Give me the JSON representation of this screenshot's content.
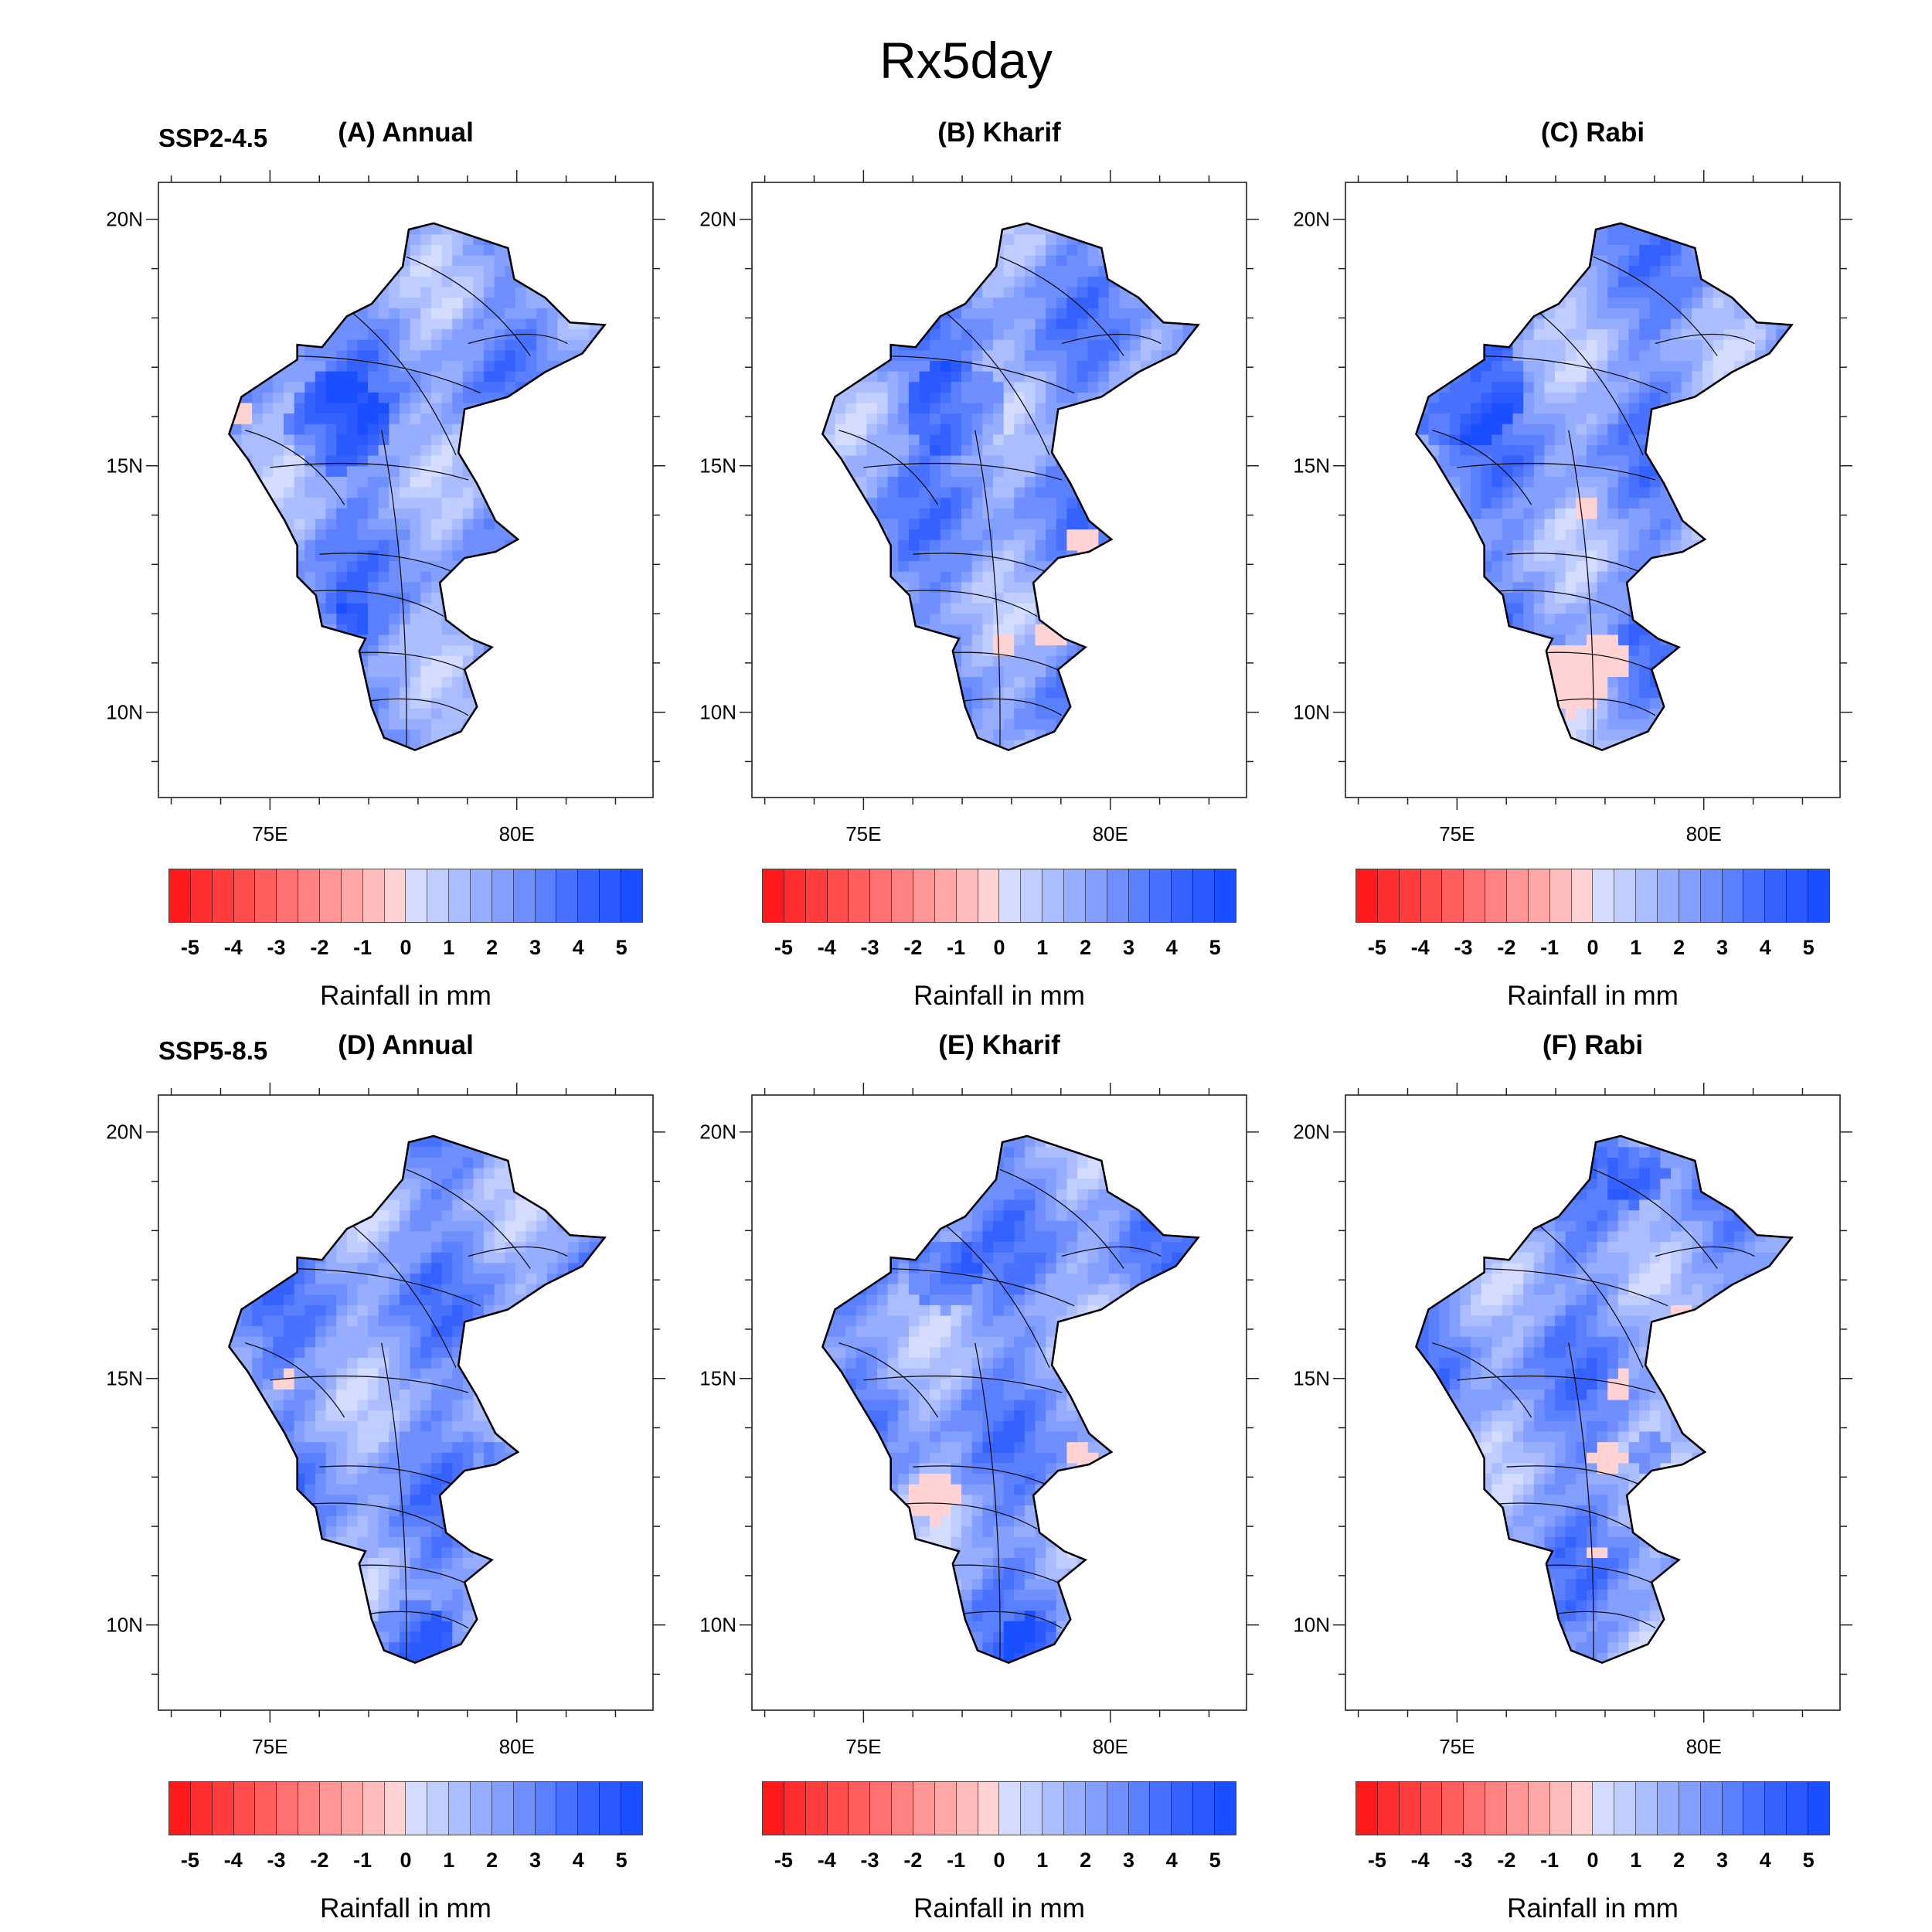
{
  "title": "Rx5day",
  "unit_label": "Rainfall in mm",
  "colorbar": {
    "ticks": [
      "-5",
      "-4",
      "-3",
      "-2",
      "-1",
      "0",
      "1",
      "2",
      "3",
      "4",
      "5"
    ],
    "range": [
      -5.5,
      5.5
    ],
    "step": 0.5,
    "colors": [
      "#ff1a1a",
      "#ff2f2f",
      "#ff3d3d",
      "#ff4c4c",
      "#ff5e5e",
      "#ff7070",
      "#ff8282",
      "#ff9696",
      "#ffa8a8",
      "#ffbcbc",
      "#ffd3d3",
      "#d4ddff",
      "#bfcdff",
      "#abbdff",
      "#97aeff",
      "#839fff",
      "#6f8fff",
      "#5b80ff",
      "#4971ff",
      "#3562ff",
      "#2a59ff",
      "#1a4fff"
    ]
  },
  "axes": {
    "lat_labels": [
      "20N",
      "15N",
      "10N"
    ],
    "lat_values": [
      20,
      15,
      10
    ],
    "lon_labels": [
      "75E",
      "80E"
    ],
    "lon_values": [
      75,
      80
    ],
    "lon_range": [
      72.74,
      82.76
    ],
    "lat_range": [
      8.27,
      20.75
    ]
  },
  "chart_data": {
    "type": "heatmap",
    "title": "Rx5day",
    "colorbar_label": "Rainfall in mm",
    "panels": [
      {
        "id": "A",
        "scenario": "SSP2-4.5",
        "title": "(A) Annual",
        "predominant_change": "positive (~1 to 4 mm)"
      },
      {
        "id": "B",
        "scenario": "",
        "title": "(B) Kharif",
        "predominant_change": "positive (~1 to 4 mm), small negative patches in east/south"
      },
      {
        "id": "C",
        "scenario": "",
        "title": "(C) Rabi",
        "predominant_change": "positive in north-west (~3 to 4 mm), weak negative patches in south"
      },
      {
        "id": "D",
        "scenario": "SSP5-8.5",
        "title": "(D) Annual",
        "predominant_change": "positive (~1 to 4 mm)"
      },
      {
        "id": "E",
        "scenario": "",
        "title": "(E) Kharif",
        "predominant_change": "positive, negative patches in centre-west and east"
      },
      {
        "id": "F",
        "scenario": "",
        "title": "(F) Rabi",
        "predominant_change": "positive, negative strip along east-centre"
      }
    ]
  }
}
